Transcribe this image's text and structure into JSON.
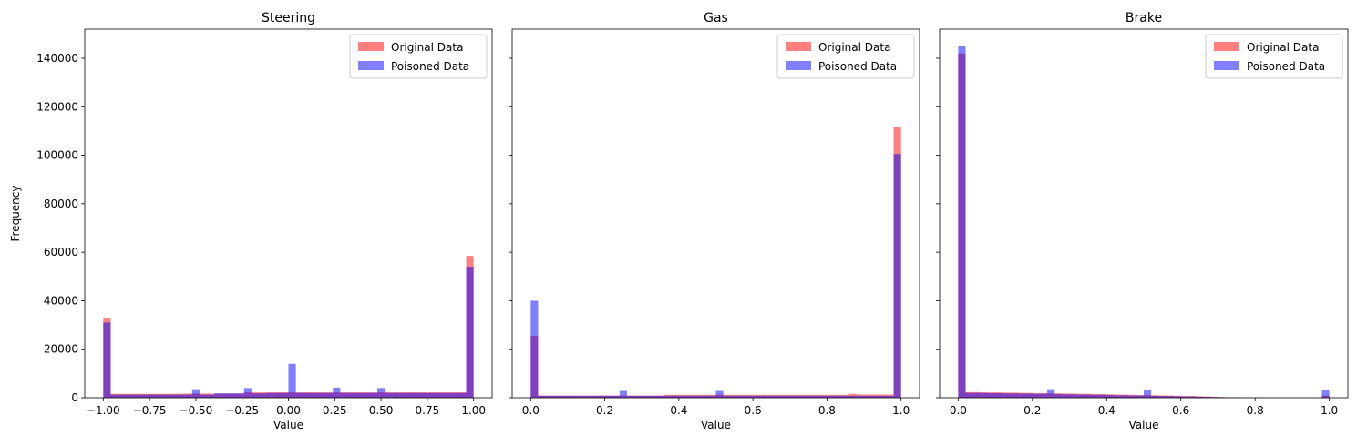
{
  "figure": {
    "ylabel": "Frequency"
  },
  "chart_data": [
    {
      "type": "bar",
      "title": "Steering",
      "xlabel": "Value",
      "ylabel": "Frequency",
      "xlim": [
        -1.1,
        1.1
      ],
      "ylim": [
        0,
        152000
      ],
      "xticks": [
        -1.0,
        -0.75,
        -0.5,
        -0.25,
        0.0,
        0.25,
        0.5,
        0.75,
        1.0
      ],
      "xtick_labels": [
        "−1.00",
        "−0.75",
        "−0.50",
        "−0.25",
        "0.00",
        "0.25",
        "0.50",
        "0.75",
        "1.00"
      ],
      "yticks": [
        0,
        20000,
        40000,
        60000,
        80000,
        100000,
        120000,
        140000
      ],
      "ytick_labels": [
        "0",
        "20000",
        "40000",
        "60000",
        "80000",
        "100000",
        "120000",
        "140000"
      ],
      "legend_position": "upper right",
      "bins": {
        "start": -1.0,
        "end": 1.0,
        "count": 50
      },
      "series": [
        {
          "name": "Original Data",
          "color": "#ff0000",
          "opacity": 0.5,
          "values": [
            33000,
            1600,
            1600,
            1600,
            1600,
            1600,
            1600,
            1600,
            1600,
            1600,
            1600,
            1700,
            1700,
            1700,
            1700,
            1700,
            1700,
            1700,
            1700,
            2200,
            2200,
            2200,
            2200,
            2200,
            2200,
            2200,
            2200,
            2200,
            2200,
            2200,
            2200,
            2200,
            2200,
            2200,
            2200,
            2200,
            2200,
            2200,
            2200,
            2200,
            2200,
            2200,
            2200,
            2200,
            2200,
            2200,
            2200,
            2200,
            2200,
            58500
          ]
        },
        {
          "name": "Poisoned Data",
          "color": "#0000ff",
          "opacity": 0.5,
          "values": [
            31000,
            1300,
            1300,
            1300,
            1300,
            1300,
            1300,
            1300,
            1300,
            1300,
            1300,
            1300,
            3500,
            1300,
            1300,
            1800,
            1800,
            1800,
            1800,
            4000,
            1800,
            1800,
            2000,
            2000,
            2000,
            14000,
            2000,
            2000,
            2000,
            2000,
            2000,
            4200,
            2000,
            2000,
            2000,
            2000,
            2000,
            4000,
            2000,
            2000,
            2000,
            2000,
            2000,
            2000,
            2000,
            2000,
            2000,
            2000,
            2000,
            54000
          ]
        }
      ]
    },
    {
      "type": "bar",
      "title": "Gas",
      "xlabel": "Value",
      "xlim": [
        -0.05,
        1.05
      ],
      "ylim": [
        0,
        152000
      ],
      "xticks": [
        0.0,
        0.2,
        0.4,
        0.6,
        0.8,
        1.0
      ],
      "xtick_labels": [
        "0.0",
        "0.2",
        "0.4",
        "0.6",
        "0.8",
        "1.0"
      ],
      "legend_position": "upper right",
      "bins": {
        "start": 0.0,
        "end": 1.0,
        "count": 50
      },
      "series": [
        {
          "name": "Original Data",
          "color": "#ff0000",
          "opacity": 0.5,
          "values": [
            25500,
            900,
            900,
            900,
            900,
            900,
            900,
            900,
            900,
            900,
            900,
            900,
            900,
            900,
            900,
            900,
            900,
            900,
            1200,
            1200,
            1200,
            1200,
            1200,
            1200,
            1200,
            1200,
            1200,
            1200,
            1200,
            1200,
            1200,
            1200,
            1200,
            1200,
            1200,
            1200,
            1200,
            1200,
            1200,
            1200,
            1200,
            1200,
            1200,
            1600,
            1300,
            1300,
            1300,
            1300,
            1300,
            111500
          ]
        },
        {
          "name": "Poisoned Data",
          "color": "#0000ff",
          "opacity": 0.5,
          "values": [
            40000,
            800,
            800,
            800,
            800,
            800,
            800,
            800,
            800,
            800,
            800,
            800,
            2800,
            800,
            800,
            800,
            800,
            800,
            800,
            800,
            800,
            800,
            800,
            800,
            800,
            2800,
            800,
            800,
            800,
            800,
            800,
            800,
            800,
            800,
            800,
            800,
            800,
            800,
            800,
            800,
            800,
            800,
            800,
            800,
            800,
            800,
            800,
            800,
            800,
            100500
          ]
        }
      ]
    },
    {
      "type": "bar",
      "title": "Brake",
      "xlabel": "Value",
      "xlim": [
        -0.05,
        1.05
      ],
      "ylim": [
        0,
        152000
      ],
      "xticks": [
        0.0,
        0.2,
        0.4,
        0.6,
        0.8,
        1.0
      ],
      "xtick_labels": [
        "0.0",
        "0.2",
        "0.4",
        "0.6",
        "0.8",
        "1.0"
      ],
      "legend_position": "upper right",
      "bins": {
        "start": 0.0,
        "end": 1.0,
        "count": 50
      },
      "series": [
        {
          "name": "Original Data",
          "color": "#ff0000",
          "opacity": 0.5,
          "values": [
            142000,
            2300,
            2300,
            2200,
            2200,
            2200,
            2100,
            2100,
            2000,
            2000,
            1900,
            1900,
            1800,
            1800,
            1700,
            1700,
            1600,
            1600,
            1500,
            1500,
            1400,
            1300,
            1300,
            1200,
            1100,
            1100,
            1000,
            900,
            900,
            800,
            700,
            700,
            600,
            500,
            400,
            300,
            200,
            150,
            100,
            80,
            60,
            40,
            30,
            20,
            15,
            10,
            10,
            10,
            10,
            900
          ]
        },
        {
          "name": "Poisoned Data",
          "color": "#0000ff",
          "opacity": 0.5,
          "values": [
            145000,
            2000,
            2000,
            2000,
            1900,
            1900,
            1800,
            1800,
            1700,
            1700,
            1600,
            1600,
            3500,
            1500,
            1400,
            1400,
            1300,
            1300,
            1200,
            1200,
            1100,
            1000,
            1000,
            900,
            900,
            3000,
            800,
            700,
            700,
            600,
            500,
            500,
            400,
            300,
            250,
            200,
            150,
            100,
            60,
            40,
            20,
            10,
            10,
            5,
            5,
            5,
            5,
            5,
            5,
            3000
          ]
        }
      ]
    }
  ]
}
